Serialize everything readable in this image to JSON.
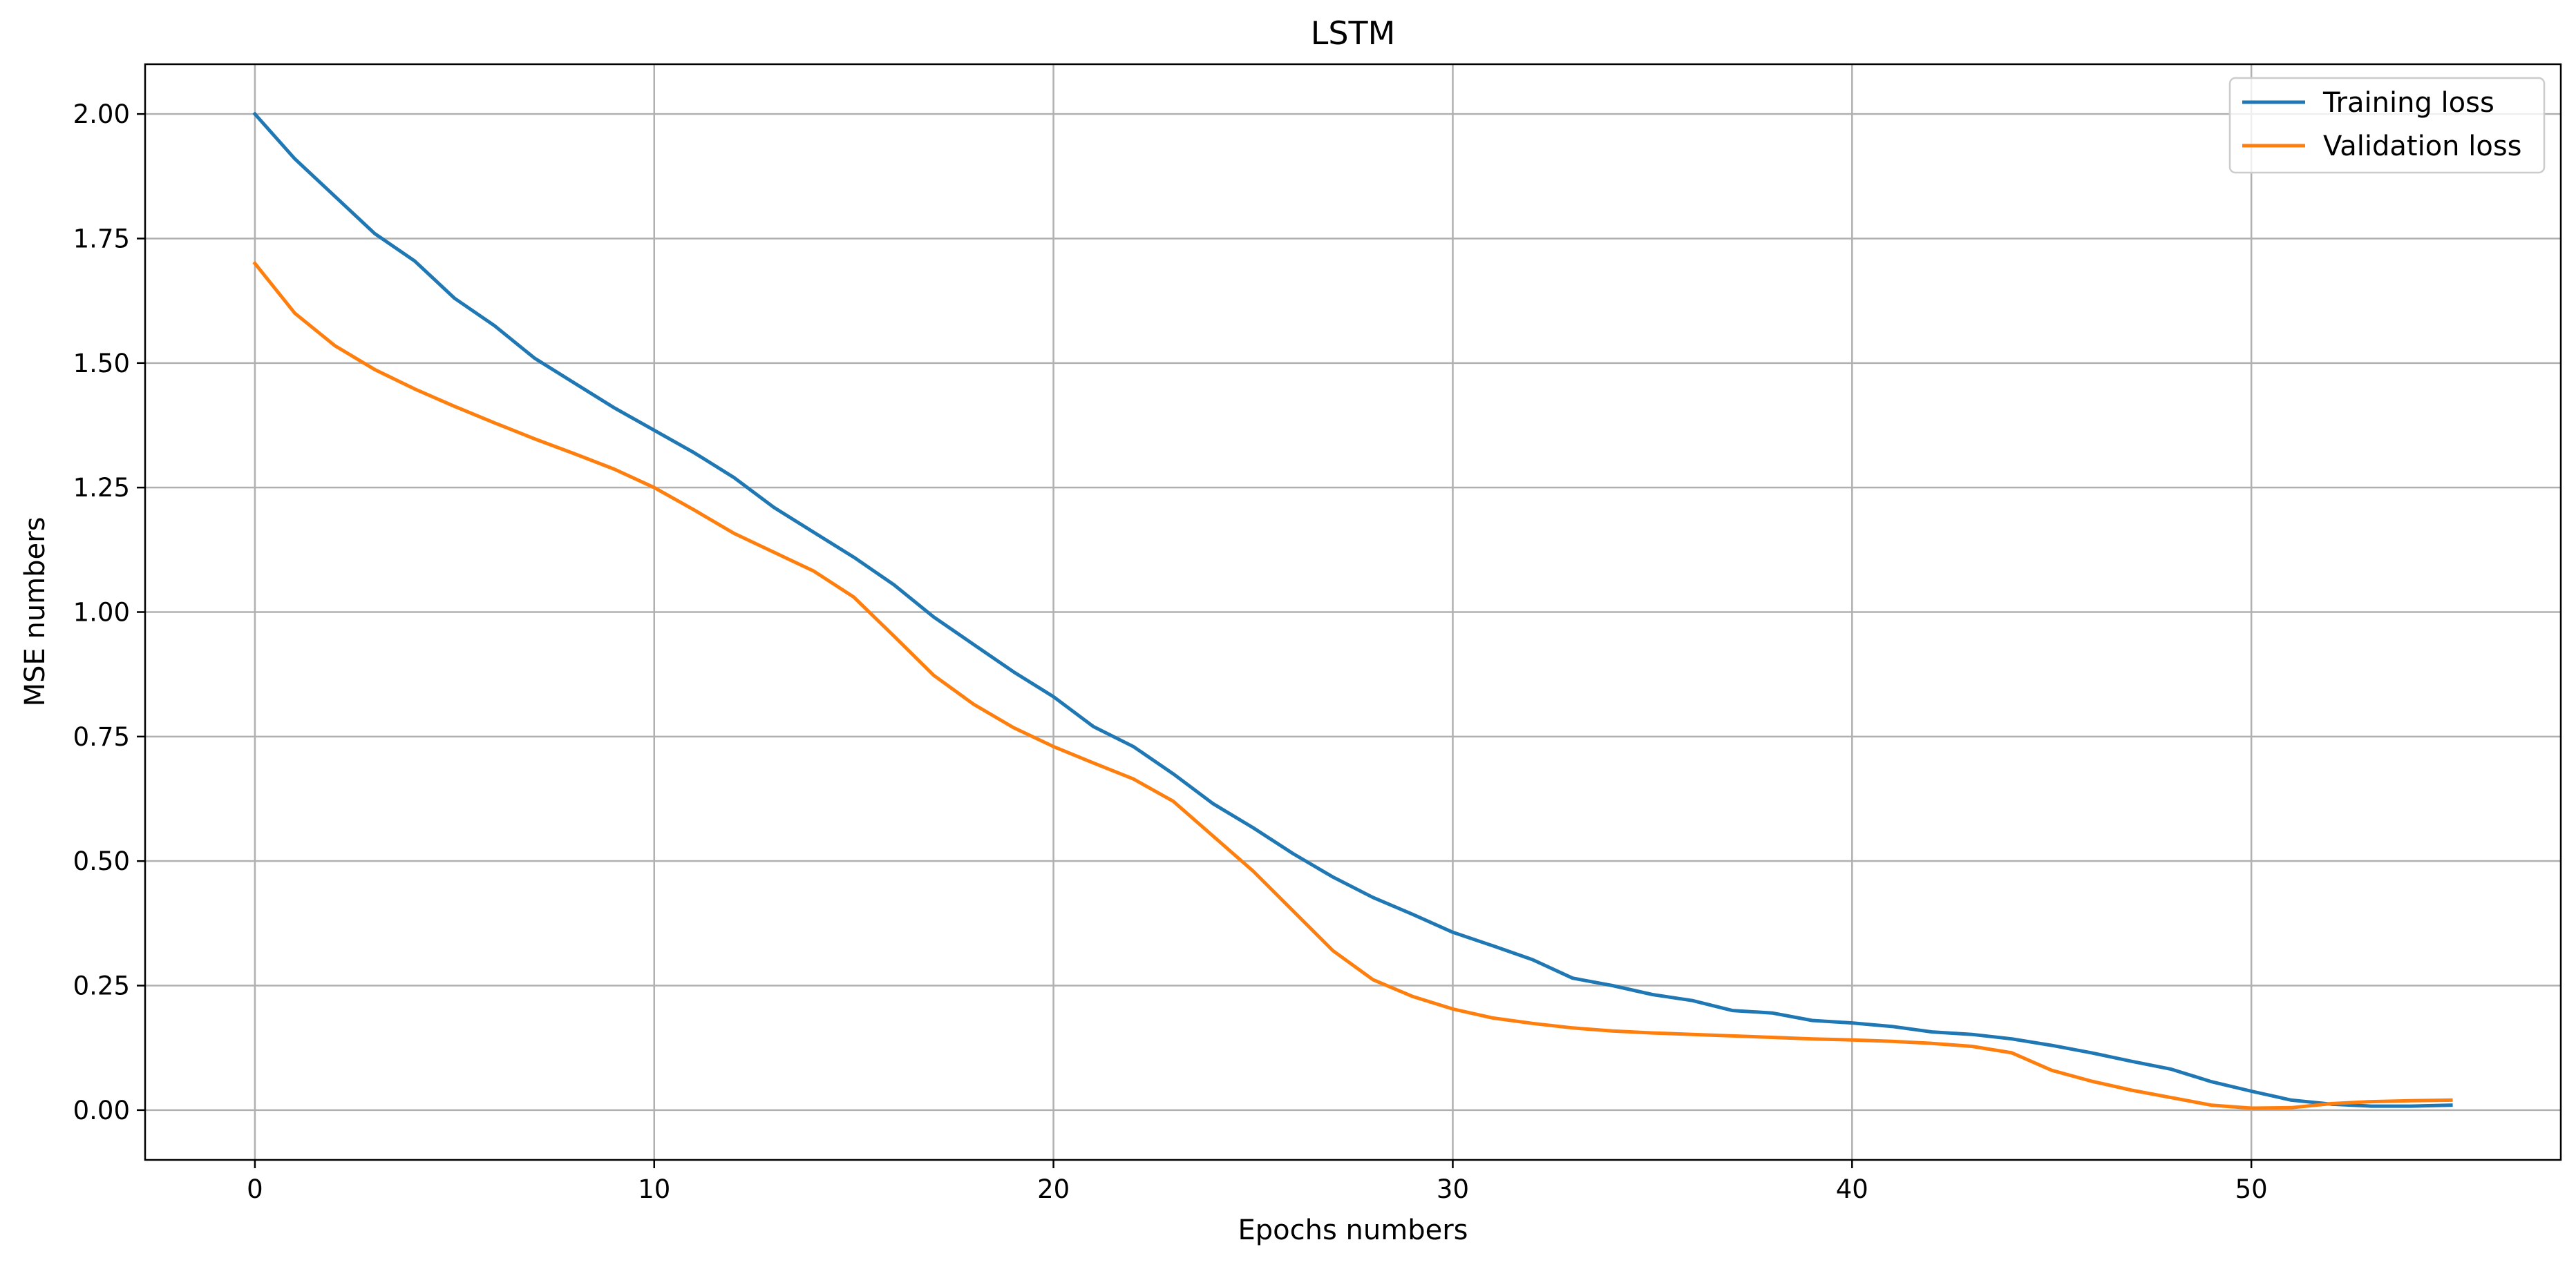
{
  "chart_data": {
    "type": "line",
    "title": "LSTM",
    "xlabel": "Epochs numbers",
    "ylabel": "MSE numbers",
    "xlim": [
      -2.75,
      57.75
    ],
    "ylim": [
      -0.1,
      2.1
    ],
    "xticks": [
      0,
      10,
      20,
      30,
      40,
      50
    ],
    "yticks": [
      0.0,
      0.25,
      0.5,
      0.75,
      1.0,
      1.25,
      1.5,
      1.75,
      2.0
    ],
    "ytick_labels": [
      "0.00",
      "0.25",
      "0.50",
      "0.75",
      "1.00",
      "1.25",
      "1.50",
      "1.75",
      "2.00"
    ],
    "xtick_labels": [
      "0",
      "10",
      "20",
      "30",
      "40",
      "50"
    ],
    "grid": true,
    "legend_position": "top-right",
    "x": [
      0,
      1,
      2,
      3,
      4,
      5,
      6,
      7,
      8,
      9,
      10,
      11,
      12,
      13,
      14,
      15,
      16,
      17,
      18,
      19,
      20,
      21,
      22,
      23,
      24,
      25,
      26,
      27,
      28,
      29,
      30,
      31,
      32,
      33,
      34,
      35,
      36,
      37,
      38,
      39,
      40,
      41,
      42,
      43,
      44,
      45,
      46,
      47,
      48,
      49,
      50,
      51,
      52,
      53,
      54,
      55
    ],
    "series": [
      {
        "name": "Training loss",
        "color": "#1f77b4",
        "values": [
          2.0,
          1.91,
          1.835,
          1.76,
          1.705,
          1.63,
          1.575,
          1.51,
          1.46,
          1.41,
          1.365,
          1.32,
          1.27,
          1.21,
          1.16,
          1.11,
          1.055,
          0.99,
          0.935,
          0.88,
          0.83,
          0.77,
          0.73,
          0.675,
          0.615,
          0.567,
          0.515,
          0.468,
          0.427,
          0.393,
          0.357,
          0.33,
          0.302,
          0.265,
          0.25,
          0.232,
          0.22,
          0.2,
          0.195,
          0.18,
          0.175,
          0.168,
          0.157,
          0.152,
          0.143,
          0.13,
          0.115,
          0.098,
          0.082,
          0.057,
          0.038,
          0.02,
          0.012,
          0.008,
          0.008,
          0.01
        ]
      },
      {
        "name": "Validation loss",
        "color": "#ff7f0e",
        "values": [
          1.7,
          1.6,
          1.535,
          1.487,
          1.448,
          1.413,
          1.38,
          1.348,
          1.318,
          1.287,
          1.25,
          1.205,
          1.158,
          1.12,
          1.082,
          1.03,
          0.952,
          0.873,
          0.815,
          0.768,
          0.73,
          0.697,
          0.665,
          0.62,
          0.55,
          0.48,
          0.4,
          0.32,
          0.262,
          0.228,
          0.203,
          0.185,
          0.174,
          0.165,
          0.159,
          0.155,
          0.152,
          0.149,
          0.146,
          0.143,
          0.141,
          0.138,
          0.134,
          0.128,
          0.115,
          0.08,
          0.058,
          0.04,
          0.025,
          0.01,
          0.004,
          0.005,
          0.013,
          0.017,
          0.019,
          0.02
        ]
      }
    ]
  }
}
